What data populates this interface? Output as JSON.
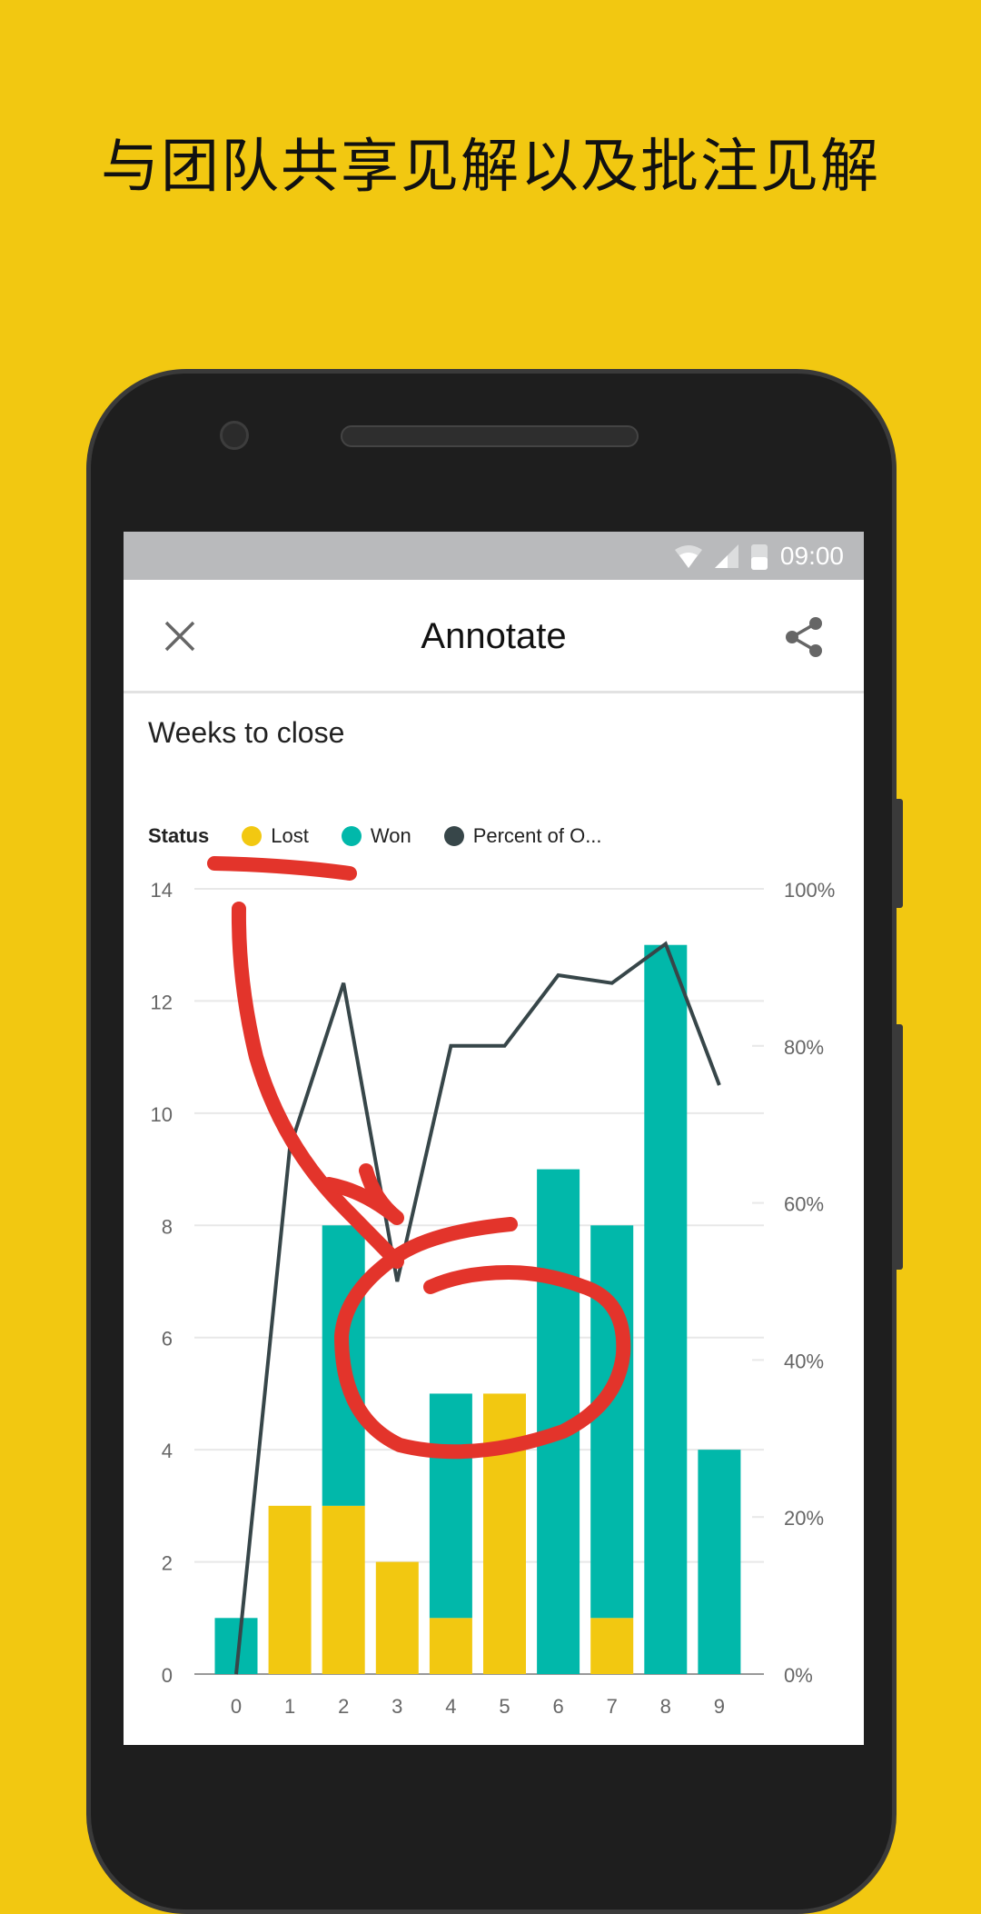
{
  "headline": "与团队共享见解以及批注见解",
  "status_bar": {
    "time": "09:00",
    "icons": [
      "wifi-icon",
      "signal-icon",
      "battery-icon"
    ]
  },
  "app_bar": {
    "title": "Annotate",
    "close_icon": "close-icon",
    "share_icon": "share-icon"
  },
  "colors": {
    "background": "#f2c811",
    "lost": "#f2c811",
    "won": "#01b8aa",
    "percent": "#374649",
    "annotation": "#e3342b"
  },
  "chart_data": {
    "type": "bar",
    "title": "Weeks to close",
    "legend": {
      "title": "Status",
      "placement": "top-left",
      "entries": [
        "Lost",
        "Won",
        "Percent of O..."
      ]
    },
    "categories": [
      "0",
      "1",
      "2",
      "3",
      "4",
      "5",
      "6",
      "7",
      "8",
      "9"
    ],
    "series": [
      {
        "name": "Lost",
        "type": "stacked-bar",
        "values": [
          0,
          3,
          3,
          2,
          1,
          5,
          0,
          1,
          0,
          0
        ]
      },
      {
        "name": "Won",
        "type": "stacked-bar",
        "values": [
          1,
          0,
          5,
          0,
          4,
          0,
          9,
          7,
          13,
          4
        ]
      },
      {
        "name": "Percent of O...",
        "type": "line",
        "axis": "right",
        "values": [
          0,
          67,
          88,
          50,
          80,
          80,
          89,
          88,
          93,
          75
        ]
      }
    ],
    "y_left": {
      "ticks": [
        "0",
        "2",
        "4",
        "6",
        "8",
        "10",
        "12",
        "14"
      ],
      "range": [
        0,
        14
      ]
    },
    "y_right": {
      "ticks": [
        "0%",
        "20%",
        "40%",
        "60%",
        "80%",
        "100%"
      ],
      "range": [
        0,
        100
      ]
    },
    "grid": true
  }
}
